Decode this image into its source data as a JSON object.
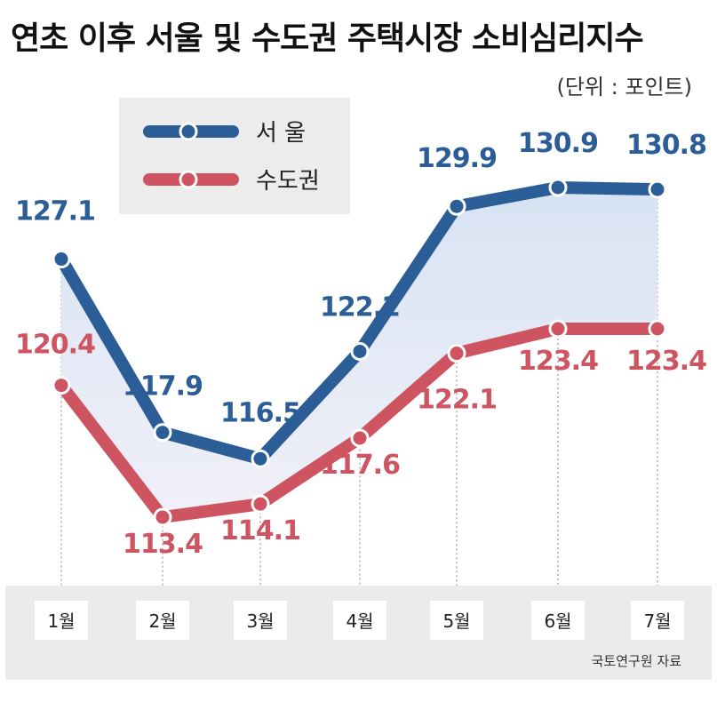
{
  "title": "연초 이후 서울 및 수도권 주택시장 소비심리지수",
  "unit": "(단위 : 포인트)",
  "source": "국토연구원 자료",
  "chart_data": {
    "type": "line",
    "categories": [
      "1월",
      "2월",
      "3월",
      "4월",
      "5월",
      "6월",
      "7월"
    ],
    "series": [
      {
        "name": "서 울",
        "color": "#2b5d96",
        "values": [
          127.1,
          117.9,
          116.5,
          122.2,
          129.9,
          130.9,
          130.8
        ],
        "labels": [
          "127.1",
          "117.9",
          "116.5",
          "122.2",
          "129.9",
          "130.9",
          "130.8"
        ]
      },
      {
        "name": "수도권",
        "color": "#cd5460",
        "values": [
          120.4,
          113.4,
          114.1,
          117.6,
          122.1,
          123.4,
          123.4
        ],
        "labels": [
          "120.4",
          "113.4",
          "114.1",
          "117.6",
          "122.1",
          "123.4",
          "123.4"
        ]
      }
    ],
    "legend_position": "top-left",
    "grid": false
  }
}
